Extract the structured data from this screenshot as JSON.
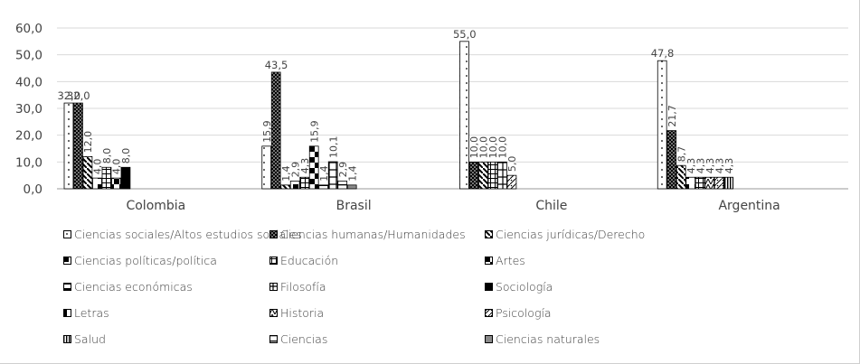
{
  "chart_data": {
    "type": "bar",
    "categories": [
      "Colombia",
      "Brasil",
      "Chile",
      "Argentina"
    ],
    "ylim": [
      0,
      60
    ],
    "yticks": [
      "0,0",
      "10,0",
      "20,0",
      "30,0",
      "40,0",
      "50,0",
      "60,0"
    ],
    "grid": true,
    "legend_position": "bottom",
    "series": [
      {
        "name": "Ciencias sociales/Altos estudios sociales",
        "values": [
          32.0,
          15.9,
          55.0,
          47.8
        ],
        "labels": [
          "32,0",
          "15,9",
          "55,0",
          "47,8"
        ],
        "pattern": "dots"
      },
      {
        "name": "Ciencias humanas/Humanidades",
        "values": [
          32.0,
          43.5,
          10.0,
          21.7
        ],
        "labels": [
          "32,0",
          "43,5",
          "10,0",
          "21,7"
        ],
        "pattern": "black-dots"
      },
      {
        "name": "Ciencias jurídicas/Derecho",
        "values": [
          12.0,
          1.4,
          10.0,
          8.7
        ],
        "labels": [
          "12,0",
          "1,4",
          "10,0",
          "8,7"
        ],
        "pattern": "diagonal"
      },
      {
        "name": "Ciencias políticas/política",
        "values": [
          4.0,
          2.9,
          0,
          4.3
        ],
        "labels": [
          "4,0",
          "2,9",
          "",
          "4,3"
        ],
        "pattern": "half"
      },
      {
        "name": "Educación",
        "values": [
          8.0,
          4.3,
          10.0,
          4.3
        ],
        "labels": [
          "8,0",
          "4,3",
          "10,0",
          "4,3"
        ],
        "pattern": "grid"
      },
      {
        "name": "Artes",
        "values": [
          4.0,
          15.9,
          0,
          0
        ],
        "labels": [
          "4,0",
          "15,9",
          "",
          ""
        ],
        "pattern": "checker"
      },
      {
        "name": "Ciencias económicas",
        "values": [
          0,
          1.4,
          0,
          0
        ],
        "labels": [
          "",
          "1,4",
          "",
          ""
        ],
        "pattern": "top-bar"
      },
      {
        "name": "Filosofía",
        "values": [
          0,
          10.1,
          10.0,
          0
        ],
        "labels": [
          "",
          "10,1",
          "10,0",
          ""
        ],
        "pattern": "cross"
      },
      {
        "name": "Sociología",
        "values": [
          8.0,
          0,
          0,
          0
        ],
        "labels": [
          "8,0",
          "",
          "",
          ""
        ],
        "pattern": "solid"
      },
      {
        "name": "Letras",
        "values": [
          0,
          0,
          0,
          0
        ],
        "labels": [
          "",
          "",
          "",
          ""
        ],
        "pattern": "left-half"
      },
      {
        "name": "Historia",
        "values": [
          0,
          0,
          0,
          4.3
        ],
        "labels": [
          "",
          "",
          "",
          "4,3"
        ],
        "pattern": "zigzag"
      },
      {
        "name": "Psicología",
        "values": [
          0,
          0,
          5.0,
          4.3
        ],
        "labels": [
          "",
          "",
          "5,0",
          "4,3"
        ],
        "pattern": "scale"
      },
      {
        "name": "Salud",
        "values": [
          0,
          0,
          0,
          4.3
        ],
        "labels": [
          "",
          "",
          "",
          "4,3"
        ],
        "pattern": "vertical"
      },
      {
        "name": "Ciencias",
        "values": [
          0,
          2.9,
          0,
          0
        ],
        "labels": [
          "",
          "2,9",
          "",
          ""
        ],
        "pattern": "top-line"
      },
      {
        "name": "Ciencias naturales",
        "values": [
          0,
          1.4,
          0,
          0
        ],
        "labels": [
          "",
          "1,4",
          "",
          ""
        ],
        "pattern": "gray"
      }
    ]
  }
}
